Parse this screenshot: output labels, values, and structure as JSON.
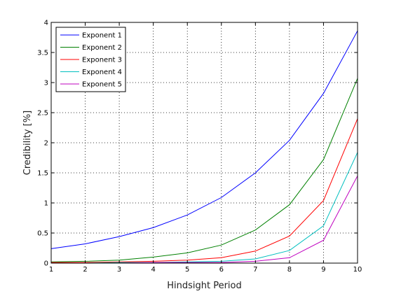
{
  "chart_data": {
    "type": "line",
    "title": "",
    "xlabel": "Hindsight Period",
    "ylabel": "Credibility [%]",
    "xlim": [
      1,
      10
    ],
    "ylim": [
      0,
      4
    ],
    "xticks": [
      "1",
      "2",
      "3",
      "4",
      "5",
      "6",
      "7",
      "8",
      "9",
      "10"
    ],
    "yticks": [
      "0",
      "0.5",
      "1",
      "1.5",
      "2",
      "2.5",
      "3",
      "3.5",
      "4"
    ],
    "grid": true,
    "legend_position": "top-left",
    "x": [
      1,
      2,
      3,
      4,
      5,
      6,
      7,
      8,
      9,
      10
    ],
    "series": [
      {
        "name": "Exponent 1",
        "color": "#0000ff",
        "values": [
          0.24,
          0.32,
          0.44,
          0.59,
          0.8,
          1.09,
          1.5,
          2.04,
          2.82,
          3.86
        ]
      },
      {
        "name": "Exponent 2",
        "color": "#008000",
        "values": [
          0.02,
          0.03,
          0.05,
          0.1,
          0.17,
          0.3,
          0.55,
          0.97,
          1.72,
          3.07
        ]
      },
      {
        "name": "Exponent 3",
        "color": "#ff0000",
        "values": [
          0.01,
          0.01,
          0.02,
          0.03,
          0.05,
          0.09,
          0.2,
          0.45,
          1.04,
          2.4
        ]
      },
      {
        "name": "Exponent 4",
        "color": "#00bfbf",
        "values": [
          0.0,
          0.0,
          0.01,
          0.01,
          0.02,
          0.03,
          0.07,
          0.21,
          0.62,
          1.84
        ]
      },
      {
        "name": "Exponent 5",
        "color": "#bf00bf",
        "values": [
          0.0,
          0.0,
          0.0,
          0.01,
          0.01,
          0.01,
          0.03,
          0.09,
          0.38,
          1.45
        ]
      }
    ]
  }
}
